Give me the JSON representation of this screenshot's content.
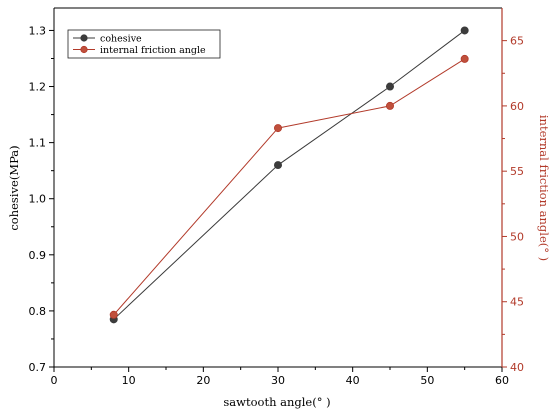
{
  "chart_data": {
    "type": "line",
    "x": [
      8,
      30,
      45,
      55
    ],
    "xlabel": "sawtooth angle(° )",
    "xlim": [
      0,
      60
    ],
    "xticks": [
      0,
      10,
      20,
      30,
      40,
      50,
      60
    ],
    "grid": false,
    "legend_position": "top-left",
    "series": [
      {
        "name": "cohesive",
        "axis": "left",
        "values": [
          0.785,
          1.06,
          1.2,
          1.3
        ],
        "color": "#3a3a3a",
        "marker_fill": "#3c3c3c"
      },
      {
        "name": "internal friction angle",
        "axis": "right",
        "values": [
          44.0,
          58.3,
          60.0,
          63.6
        ],
        "color": "#b23a2a",
        "marker_fill": "#c0503c"
      }
    ],
    "ylabel_left": "cohesive(MPa)",
    "ylim_left": [
      0.7,
      1.34
    ],
    "yticks_left": [
      0.7,
      0.8,
      0.9,
      1.0,
      1.1,
      1.2,
      1.3
    ],
    "ylabel_right": "internal friction angle(° )",
    "ylim_right": [
      40,
      67.5
    ],
    "yticks_right": [
      40,
      45,
      50,
      55,
      60,
      65
    ],
    "left_axis_color": "#000000",
    "right_axis_color": "#b23a2a"
  }
}
